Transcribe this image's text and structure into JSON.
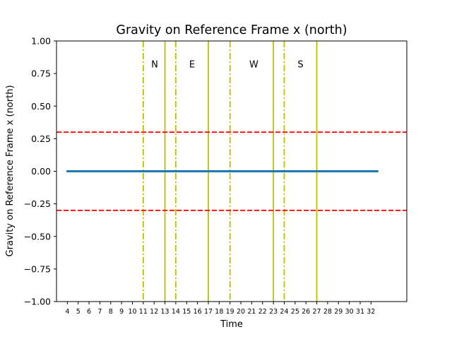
{
  "chart_data": {
    "type": "line",
    "title": "Gravity on Reference Frame x (north)",
    "xlabel": "Time",
    "ylabel": "Gravity on Reference Frame x (north)",
    "xlim": [
      3.0,
      35.3
    ],
    "ylim": [
      -1.0,
      1.0
    ],
    "x_ticks": [
      4,
      5,
      6,
      7,
      8,
      9,
      10,
      11,
      12,
      13,
      14,
      15,
      16,
      17,
      18,
      19,
      20,
      21,
      22,
      23,
      24,
      25,
      26,
      27,
      28,
      29,
      30,
      31,
      32
    ],
    "y_ticks": [
      -1.0,
      -0.75,
      -0.5,
      -0.25,
      0.0,
      0.25,
      0.5,
      0.75,
      1.0
    ],
    "y_tick_labels": [
      "−1.00",
      "−0.75",
      "−0.50",
      "−0.25",
      "0.00",
      "0.25",
      "0.50",
      "0.75",
      "1.00"
    ],
    "grid": false,
    "series": [
      {
        "color": "#1f77b4",
        "x": [
          4.0,
          32.6
        ],
        "y": [
          0.0,
          0.0
        ]
      }
    ],
    "thresholds": [
      {
        "y": 0.3,
        "color": "#ff0000",
        "style": "dashed"
      },
      {
        "y": -0.3,
        "color": "#ff0000",
        "style": "dashed"
      }
    ],
    "vlines": [
      {
        "x": 11,
        "color": "#bfbf00",
        "style": "dashdot"
      },
      {
        "x": 13,
        "color": "#bfbf00",
        "style": "solid"
      },
      {
        "x": 14,
        "color": "#bfbf00",
        "style": "dashdot"
      },
      {
        "x": 17,
        "color": "#bfbf00",
        "style": "solid"
      },
      {
        "x": 19,
        "color": "#bfbf00",
        "style": "dashdot"
      },
      {
        "x": 23,
        "color": "#bfbf00",
        "style": "solid"
      },
      {
        "x": 24,
        "color": "#bfbf00",
        "style": "dashdot"
      },
      {
        "x": 27,
        "color": "#bfbf00",
        "style": "solid"
      }
    ],
    "annotations": [
      {
        "text": "N",
        "x": 12.05,
        "y": 0.825
      },
      {
        "text": "E",
        "x": 15.5,
        "y": 0.825
      },
      {
        "text": "W",
        "x": 21.2,
        "y": 0.825
      },
      {
        "text": "S",
        "x": 25.5,
        "y": 0.825
      }
    ]
  }
}
